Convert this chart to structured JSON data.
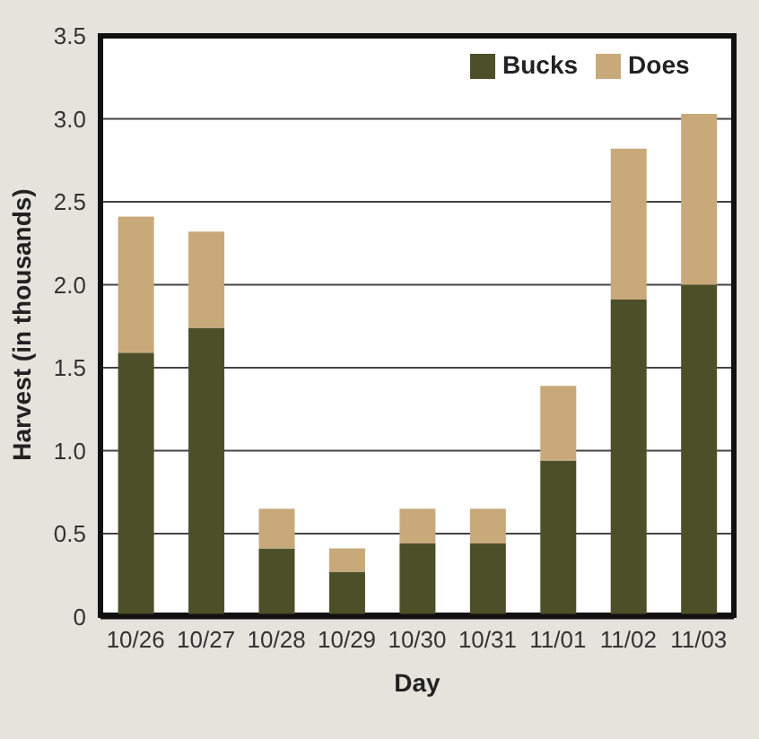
{
  "chart_data": {
    "type": "bar",
    "stacked": true,
    "xlabel": "Day",
    "ylabel": "Harvest (in thousands)",
    "categories": [
      "10/26",
      "10/27",
      "10/28",
      "10/29",
      "10/30",
      "10/31",
      "11/01",
      "11/02",
      "11/03"
    ],
    "series": [
      {
        "name": "Bucks",
        "color": "#4d4f28",
        "values": [
          1.59,
          1.74,
          0.41,
          0.27,
          0.44,
          0.44,
          0.94,
          1.91,
          2.0
        ]
      },
      {
        "name": "Does",
        "color": "#c8a97a",
        "values": [
          0.82,
          0.58,
          0.24,
          0.14,
          0.21,
          0.21,
          0.45,
          0.91,
          1.03
        ]
      }
    ],
    "ylim": [
      0,
      3.5
    ],
    "yticks": [
      0,
      {
        "value": 0.5,
        "label": "0.5"
      },
      {
        "value": 1,
        "label": "1.0"
      },
      {
        "value": 1.5,
        "label": "1.5"
      },
      {
        "value": 2,
        "label": "2.0"
      },
      {
        "value": 2.5,
        "label": "2.5"
      },
      {
        "value": 3,
        "label": "3.0"
      },
      {
        "value": 3.5,
        "label": "3.5"
      }
    ],
    "grid": "y",
    "legend": "top right"
  }
}
